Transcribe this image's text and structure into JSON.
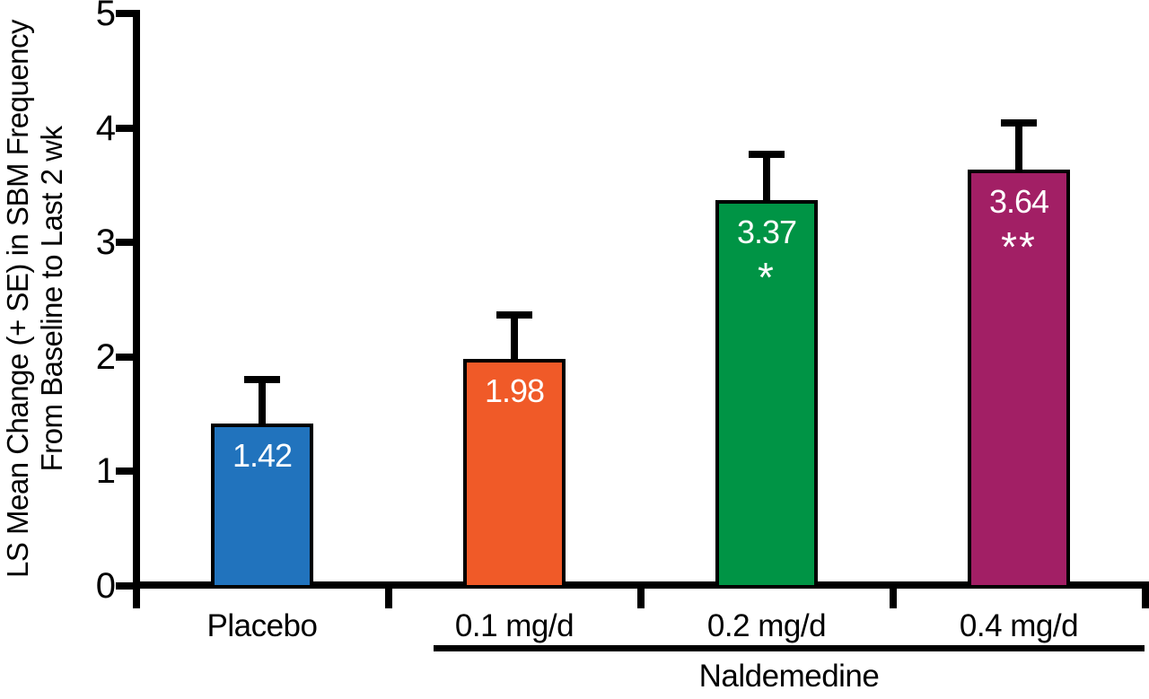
{
  "chart_data": {
    "type": "bar",
    "title": "",
    "categories": [
      "Placebo",
      "0.1 mg/d",
      "0.2 mg/d",
      "0.4 mg/d"
    ],
    "values": [
      1.42,
      1.98,
      3.37,
      3.64
    ],
    "value_labels": [
      "1.42",
      "1.98",
      "3.37",
      "3.64"
    ],
    "errors_se": [
      0.38,
      0.39,
      0.4,
      0.4
    ],
    "significance": [
      "",
      "",
      "*",
      "**"
    ],
    "bar_colors": [
      "#2173BD",
      "#F05A28",
      "#009445",
      "#A21F65"
    ],
    "ylabel_line1": "LS Mean Change (+ SE) in SBM Frequency",
    "ylabel_line2": "From Baseline to Last 2 wk",
    "xlabel": "",
    "ylim": [
      0,
      5
    ],
    "yticks": [
      0,
      1,
      2,
      3,
      4,
      5
    ],
    "grid": false,
    "legend": "none",
    "group_annotation": {
      "label": "Naldemedine",
      "applies_to": [
        "0.1 mg/d",
        "0.2 mg/d",
        "0.4 mg/d"
      ]
    }
  },
  "colors": {
    "axis": "#000000",
    "value_text": "#FFFFFF",
    "background": "#FFFFFF"
  }
}
